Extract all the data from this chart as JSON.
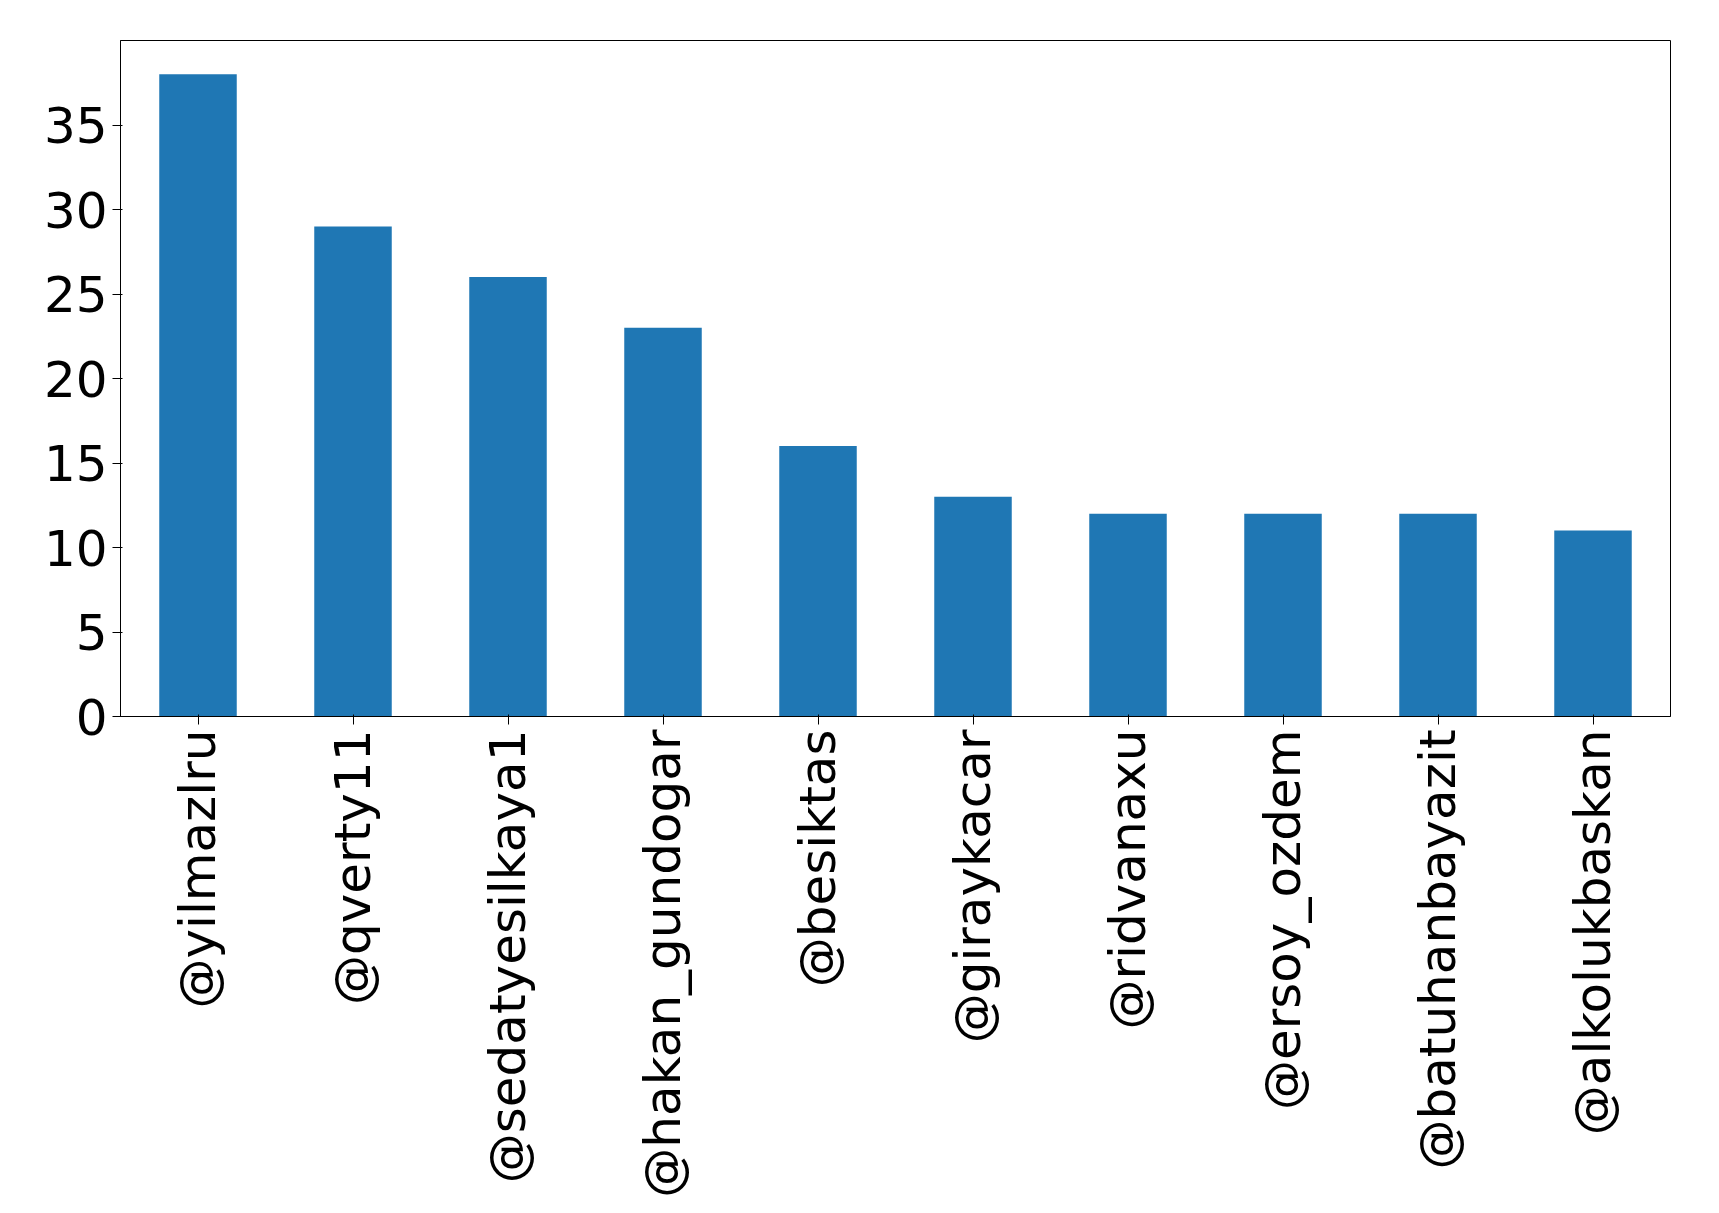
{
  "chart_data": {
    "type": "bar",
    "categories": [
      "@yilmazlru",
      "@qverty11",
      "@sedatyesilkaya1",
      "@hakan_gundogar",
      "@besiktas",
      "@giraykacar",
      "@ridvanaxu",
      "@ersoy_ozdem",
      "@batuhanbayazit",
      "@alkolukbaskan"
    ],
    "values": [
      38,
      29,
      26,
      23,
      16,
      13,
      12,
      12,
      12,
      11
    ],
    "color": "#1f77b4",
    "ylim": [
      0,
      40
    ],
    "yticks": [
      0,
      5,
      10,
      15,
      20,
      25,
      30,
      35
    ],
    "grid": false
  }
}
